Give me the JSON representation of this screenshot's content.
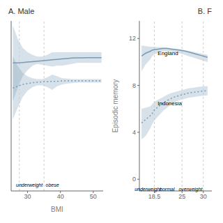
{
  "chart_data": [
    {
      "type": "line",
      "title": "A. Male",
      "xlabel": "BMI",
      "xlim": [
        25,
        53
      ],
      "ylim": [
        -5,
        14
      ],
      "xticks": [
        30,
        40,
        50
      ],
      "tick_labels": "x",
      "grid": false,
      "vlines": [
        27.5,
        35.0
      ],
      "series": [
        {
          "color": "#7a9ab5",
          "line_style": "solid",
          "x": [
            25.5,
            27,
            28.5,
            30,
            31.5,
            33,
            34.5,
            36,
            37.5,
            39,
            40.5,
            42,
            43.5,
            45,
            46.5,
            48,
            49.5,
            51,
            52.5
          ],
          "values": [
            9.3,
            9.3,
            9.35,
            9.4,
            9.45,
            9.5,
            9.55,
            9.6,
            9.65,
            9.7,
            9.75,
            9.8,
            9.85,
            9.87,
            9.88,
            9.89,
            9.9,
            9.9,
            9.9
          ],
          "ci_upper": [
            13.5,
            12.0,
            11.0,
            10.5,
            10.2,
            10.0,
            10.0,
            10.2,
            10.5,
            10.5,
            10.5,
            10.5,
            10.5,
            10.5,
            10.5,
            10.5,
            10.5,
            10.5,
            10.5
          ],
          "ci_lower": [
            5.0,
            6.5,
            7.8,
            8.5,
            9.0,
            9.2,
            9.1,
            9.0,
            8.9,
            9.0,
            9.0,
            9.1,
            9.2,
            9.3,
            9.3,
            9.3,
            9.3,
            9.3,
            9.3
          ]
        },
        {
          "color": "#7a9ab5",
          "line_style": "dotted",
          "x": [
            25.5,
            27,
            28.5,
            30,
            31.5,
            33,
            34.5,
            36,
            37.5,
            39,
            40.5,
            42,
            43.5,
            45,
            46.5,
            48,
            49.5,
            51,
            52.5
          ],
          "values": [
            6.5,
            6.7,
            6.9,
            7.0,
            7.1,
            7.15,
            7.2,
            7.2,
            7.25,
            7.25,
            7.3,
            7.3,
            7.3,
            7.3,
            7.3,
            7.3,
            7.3,
            7.3,
            7.3
          ],
          "ci_upper": [
            10.0,
            9.0,
            8.2,
            7.8,
            7.6,
            7.5,
            7.5,
            7.7,
            8.0,
            7.8,
            7.6,
            7.55,
            7.5,
            7.5,
            7.5,
            7.5,
            7.5,
            7.5,
            7.5
          ],
          "ci_lower": [
            3.0,
            4.3,
            5.5,
            6.2,
            6.6,
            6.8,
            6.8,
            6.6,
            6.3,
            6.7,
            6.9,
            7.0,
            7.05,
            7.1,
            7.1,
            7.1,
            7.1,
            7.1,
            7.1
          ]
        }
      ],
      "annotations": [],
      "region_labels": [
        {
          "text": "underweight",
          "x": 26.5,
          "y": -4.5
        },
        {
          "text": "obese",
          "x": 35.5,
          "y": -4.5
        }
      ]
    },
    {
      "type": "line",
      "title": "B. F",
      "ylabel": "Episodic memory",
      "xlim": [
        15,
        32
      ],
      "ylim": [
        -1,
        13.5
      ],
      "xticks": [
        18.5,
        25,
        30
      ],
      "yticks": [
        0,
        4,
        8,
        12
      ],
      "grid": false,
      "vlines": [
        18.5,
        25.0,
        30.0
      ],
      "series": [
        {
          "color": "#7a9ab5",
          "line_style": "solid",
          "x": [
            15.5,
            16.5,
            17.5,
            18.0,
            18.5,
            19.5,
            20.5,
            21.5,
            22.5,
            23.5,
            24.5,
            25.5,
            26.5,
            27.5,
            28.5,
            29.5,
            31.0
          ],
          "values": [
            10.5,
            10.75,
            10.9,
            11.0,
            11.05,
            11.1,
            11.15,
            11.15,
            11.1,
            11.05,
            11.0,
            10.95,
            10.85,
            10.75,
            10.65,
            10.55,
            10.4
          ],
          "ci_upper": [
            11.4,
            11.35,
            11.3,
            11.3,
            11.28,
            11.25,
            11.25,
            11.22,
            11.18,
            11.12,
            11.08,
            11.02,
            10.95,
            10.88,
            10.8,
            10.72,
            10.6
          ],
          "ci_lower": [
            9.2,
            9.8,
            10.2,
            10.5,
            10.65,
            10.8,
            10.9,
            10.9,
            10.85,
            10.8,
            10.72,
            10.62,
            10.5,
            10.4,
            10.28,
            10.15,
            10.0
          ]
        },
        {
          "color": "#7a9ab5",
          "line_style": "dotted",
          "x": [
            15.5,
            16.5,
            17.5,
            18.0,
            18.5,
            19.5,
            20.5,
            21.5,
            22.5,
            23.5,
            24.5,
            25.5,
            26.5,
            27.5,
            28.5,
            29.5,
            31.0
          ],
          "values": [
            4.8,
            5.1,
            5.4,
            5.6,
            5.9,
            6.2,
            6.5,
            6.7,
            6.9,
            7.05,
            7.15,
            7.25,
            7.35,
            7.4,
            7.45,
            7.5,
            7.55
          ],
          "ci_upper": [
            6.0,
            6.1,
            6.2,
            6.4,
            6.6,
            6.8,
            7.0,
            7.2,
            7.35,
            7.45,
            7.55,
            7.65,
            7.75,
            7.8,
            7.85,
            7.9,
            7.95
          ],
          "ci_lower": [
            3.4,
            3.7,
            4.3,
            4.7,
            5.0,
            5.4,
            5.8,
            6.1,
            6.4,
            6.6,
            6.75,
            6.85,
            6.95,
            7.0,
            7.05,
            7.1,
            7.15
          ]
        }
      ],
      "annotations": [
        {
          "text": "England",
          "x": 19.3,
          "y": 10.6
        },
        {
          "text": "Indonesia",
          "x": 19.3,
          "y": 6.3
        }
      ],
      "region_labels": [
        {
          "text": "underweight",
          "x": 17.0,
          "y": -0.7
        },
        {
          "text": "normal",
          "x": 21.5,
          "y": -0.7
        },
        {
          "text": "overweight",
          "x": 27.0,
          "y": -0.7
        }
      ]
    }
  ]
}
